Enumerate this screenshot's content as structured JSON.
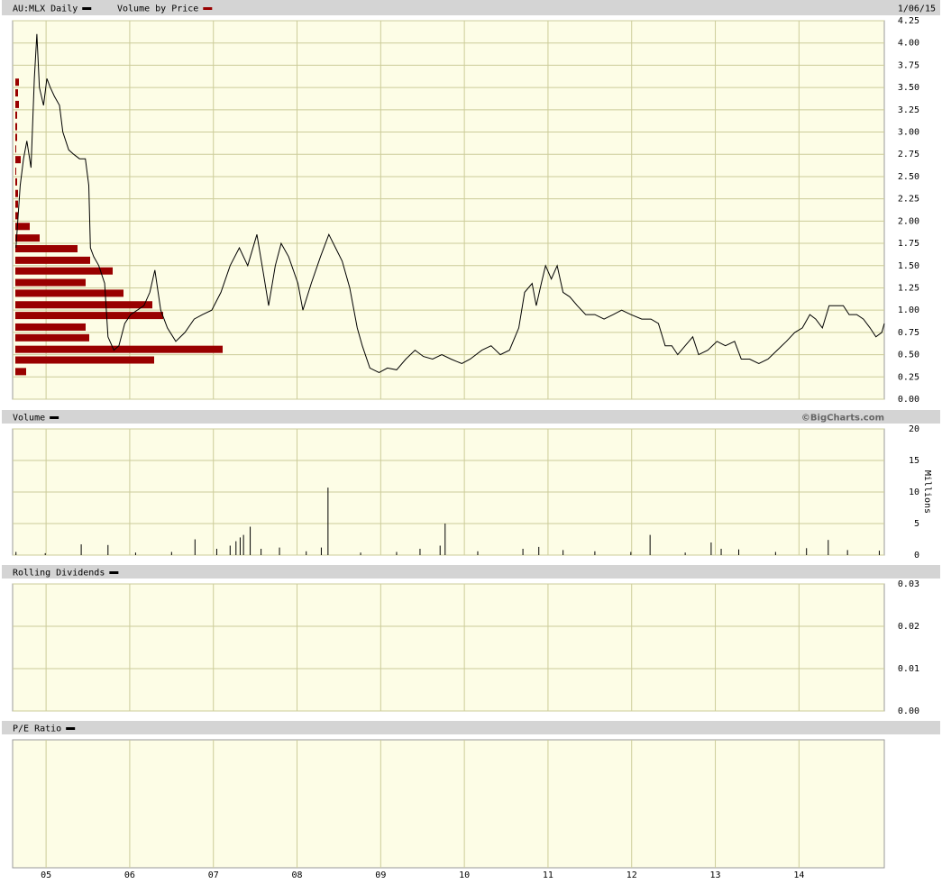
{
  "chart_data": [
    {
      "type": "line",
      "date": "1/06/15",
      "series": [
        {
          "name": "AU:MLX Daily",
          "color": "#000000",
          "x": [
            2004.64,
            2004.69,
            2004.73,
            2004.77,
            2004.82,
            2004.86,
            2004.89,
            2004.92,
            2004.97,
            2005.01,
            2005.05,
            2005.1,
            2005.16,
            2005.2,
            2005.27,
            2005.33,
            2005.4,
            2005.47,
            2005.51,
            2005.53,
            2005.57,
            2005.63,
            2005.7,
            2005.74,
            2005.81,
            2005.87,
            2005.94,
            2006.01,
            2006.09,
            2006.17,
            2006.24,
            2006.3,
            2006.37,
            2006.45,
            2006.55,
            2006.66,
            2006.77,
            2006.87,
            2006.98,
            2007.09,
            2007.2,
            2007.31,
            2007.41,
            2007.52,
            2007.6,
            2007.66,
            2007.74,
            2007.81,
            2007.9,
            2008.01,
            2008.07,
            2008.17,
            2008.28,
            2008.38,
            2008.46,
            2008.54,
            2008.63,
            2008.72,
            2008.78,
            2008.87,
            2008.98,
            2009.08,
            2009.19,
            2009.3,
            2009.41,
            2009.51,
            2009.62,
            2009.73,
            2009.84,
            2009.97,
            2010.07,
            2010.21,
            2010.32,
            2010.43,
            2010.54,
            2010.65,
            2010.72,
            2010.81,
            2010.86,
            2010.92,
            2010.97,
            2011.04,
            2011.11,
            2011.18,
            2011.26,
            2011.35,
            2011.45,
            2011.56,
            2011.67,
            2011.78,
            2011.88,
            2011.99,
            2012.12,
            2012.23,
            2012.32,
            2012.4,
            2012.48,
            2012.55,
            2012.64,
            2012.73,
            2012.8,
            2012.91,
            2013.02,
            2013.12,
            2013.23,
            2013.31,
            2013.41,
            2013.52,
            2013.63,
            2013.74,
            2013.85,
            2013.95,
            2014.04,
            2014.13,
            2014.2,
            2014.28,
            2014.36,
            2014.45,
            2014.53,
            2014.6,
            2014.69,
            2014.77,
            2014.85,
            2014.92,
            2014.99,
            2015.02
          ],
          "values": [
            1.7,
            2.4,
            2.7,
            2.9,
            2.6,
            3.6,
            4.1,
            3.5,
            3.3,
            3.6,
            3.5,
            3.4,
            3.3,
            3.0,
            2.8,
            2.75,
            2.7,
            2.7,
            2.4,
            1.7,
            1.6,
            1.5,
            1.3,
            0.7,
            0.55,
            0.6,
            0.85,
            0.95,
            1.0,
            1.05,
            1.2,
            1.45,
            1.0,
            0.8,
            0.65,
            0.75,
            0.9,
            0.95,
            1.0,
            1.2,
            1.5,
            1.7,
            1.5,
            1.85,
            1.4,
            1.05,
            1.5,
            1.75,
            1.6,
            1.3,
            1.0,
            1.3,
            1.6,
            1.85,
            1.7,
            1.55,
            1.25,
            0.8,
            0.6,
            0.35,
            0.3,
            0.35,
            0.33,
            0.45,
            0.55,
            0.48,
            0.45,
            0.5,
            0.45,
            0.4,
            0.45,
            0.55,
            0.6,
            0.5,
            0.55,
            0.8,
            1.2,
            1.3,
            1.05,
            1.3,
            1.5,
            1.35,
            1.5,
            1.2,
            1.15,
            1.05,
            0.95,
            0.95,
            0.9,
            0.95,
            1.0,
            0.95,
            0.9,
            0.9,
            0.85,
            0.6,
            0.6,
            0.5,
            0.6,
            0.7,
            0.5,
            0.55,
            0.65,
            0.6,
            0.65,
            0.45,
            0.45,
            0.4,
            0.45,
            0.55,
            0.65,
            0.75,
            0.8,
            0.95,
            0.9,
            0.8,
            1.05,
            1.05,
            1.05,
            0.95,
            0.95,
            0.9,
            0.8,
            0.7,
            0.75,
            0.85
          ]
        }
      ],
      "volume_by_price": {
        "name": "Volume by Price",
        "color": "#990000",
        "price_levels": [
          3.56,
          3.44,
          3.31,
          3.19,
          3.06,
          2.94,
          2.81,
          2.69,
          2.56,
          2.44,
          2.31,
          2.19,
          2.06,
          1.94,
          1.81,
          1.69,
          1.56,
          1.44,
          1.31,
          1.19,
          1.06,
          0.94,
          0.81,
          0.69,
          0.56,
          0.44,
          0.31
        ],
        "values": [
          4,
          3,
          4,
          2,
          2,
          2,
          1,
          6,
          1,
          2,
          3,
          3,
          3,
          16,
          27,
          69,
          83,
          108,
          78,
          120,
          152,
          164,
          78,
          82,
          230,
          154,
          12
        ]
      },
      "ylim": [
        0,
        4.25
      ],
      "yticks": [
        {
          "value": 0,
          "label": "0.00"
        },
        {
          "value": 0.25,
          "label": "0.25"
        },
        {
          "value": 0.5,
          "label": "0.50"
        },
        {
          "value": 0.75,
          "label": "0.75"
        },
        {
          "value": 1,
          "label": "1.00"
        },
        {
          "value": 1.25,
          "label": "1.25"
        },
        {
          "value": 1.5,
          "label": "1.50"
        },
        {
          "value": 1.75,
          "label": "1.75"
        },
        {
          "value": 2,
          "label": "2.00"
        },
        {
          "value": 2.25,
          "label": "2.25"
        },
        {
          "value": 2.5,
          "label": "2.50"
        },
        {
          "value": 2.75,
          "label": "2.75"
        },
        {
          "value": 3,
          "label": "3.00"
        },
        {
          "value": 3.25,
          "label": "3.25"
        },
        {
          "value": 3.5,
          "label": "3.50"
        },
        {
          "value": 3.75,
          "label": "3.75"
        },
        {
          "value": 4,
          "label": "4.00"
        },
        {
          "value": 4.25,
          "label": "4.25"
        }
      ],
      "grid": true
    },
    {
      "type": "bar",
      "source": "©BigCharts.com",
      "y_label": "Millions",
      "series": [
        {
          "name": "Volume",
          "color": "#000000",
          "x": [
            2004.64,
            2004.99,
            2005.42,
            2005.74,
            2006.07,
            2006.5,
            2006.78,
            2007.04,
            2007.2,
            2007.27,
            2007.32,
            2007.36,
            2007.44,
            2007.57,
            2007.79,
            2008.11,
            2008.29,
            2008.37,
            2008.76,
            2009.19,
            2009.47,
            2009.71,
            2009.77,
            2010.16,
            2010.7,
            2010.89,
            2011.18,
            2011.56,
            2011.99,
            2012.22,
            2012.64,
            2012.95,
            2013.07,
            2013.28,
            2013.72,
            2014.09,
            2014.35,
            2014.58,
            2014.96
          ],
          "values": [
            0.5,
            0.3,
            1.7,
            1.6,
            0.4,
            0.5,
            2.5,
            1.0,
            1.5,
            2.2,
            2.8,
            3.2,
            4.5,
            1.0,
            1.2,
            0.6,
            1.2,
            10.7,
            0.4,
            0.5,
            1.0,
            1.5,
            5.0,
            0.6,
            1.0,
            1.3,
            0.8,
            0.6,
            0.5,
            3.2,
            0.4,
            2.0,
            1.0,
            0.9,
            0.5,
            1.1,
            2.4,
            0.8,
            0.7
          ]
        }
      ],
      "ylim": [
        0,
        20
      ],
      "yticks": [
        0,
        5,
        10,
        15,
        20
      ],
      "grid": true
    },
    {
      "type": "line",
      "series": [
        {
          "name": "Rolling Dividends",
          "color": "#000000",
          "values": []
        }
      ],
      "ylim": [
        0,
        0.03
      ],
      "yticks": [
        {
          "value": 0,
          "label": "0.00"
        },
        {
          "value": 0.01,
          "label": "0.01"
        },
        {
          "value": 0.02,
          "label": "0.02"
        },
        {
          "value": 0.03,
          "label": "0.03"
        }
      ],
      "grid": true
    },
    {
      "type": "line",
      "series": [
        {
          "name": "P/E Ratio",
          "color": "#000000",
          "values": []
        }
      ],
      "xlim": [
        2004.6,
        2015.02
      ],
      "xticks": [
        {
          "value": 2005,
          "label": "05"
        },
        {
          "value": 2006,
          "label": "06"
        },
        {
          "value": 2007,
          "label": "07"
        },
        {
          "value": 2008,
          "label": "08"
        },
        {
          "value": 2009,
          "label": "09"
        },
        {
          "value": 2010,
          "label": "10"
        },
        {
          "value": 2011,
          "label": "11"
        },
        {
          "value": 2012,
          "label": "12"
        },
        {
          "value": 2013,
          "label": "13"
        },
        {
          "value": 2014,
          "label": "14"
        }
      ],
      "grid": true
    }
  ]
}
